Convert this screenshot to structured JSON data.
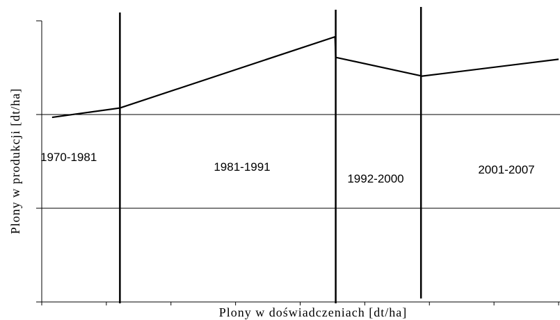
{
  "chart_data": {
    "type": "line",
    "x_label": "Plony w doświadczeniach [dt/ha]",
    "y_label": "Plony w produkcji [dt/ha]",
    "x": [
      0.16,
      1.21,
      4.54,
      4.55,
      5.89,
      8
    ],
    "series": [
      {
        "color": "#000000",
        "values": [
          1.97,
          2.07,
          2.83,
          2.61,
          2.41,
          2.59
        ]
      }
    ],
    "dividers": [
      1.21,
      4.55,
      5.87
    ],
    "periods": [
      "1970-1981",
      "1981-1991",
      "1992-2000",
      "2001-2007"
    ],
    "xlim": [
      0,
      8
    ],
    "xticks": [
      0,
      1,
      2,
      3,
      4,
      5,
      6,
      7,
      8
    ],
    "ylim": [
      0,
      3
    ],
    "yticks": [
      0,
      1,
      2,
      3
    ],
    "grid": true
  }
}
